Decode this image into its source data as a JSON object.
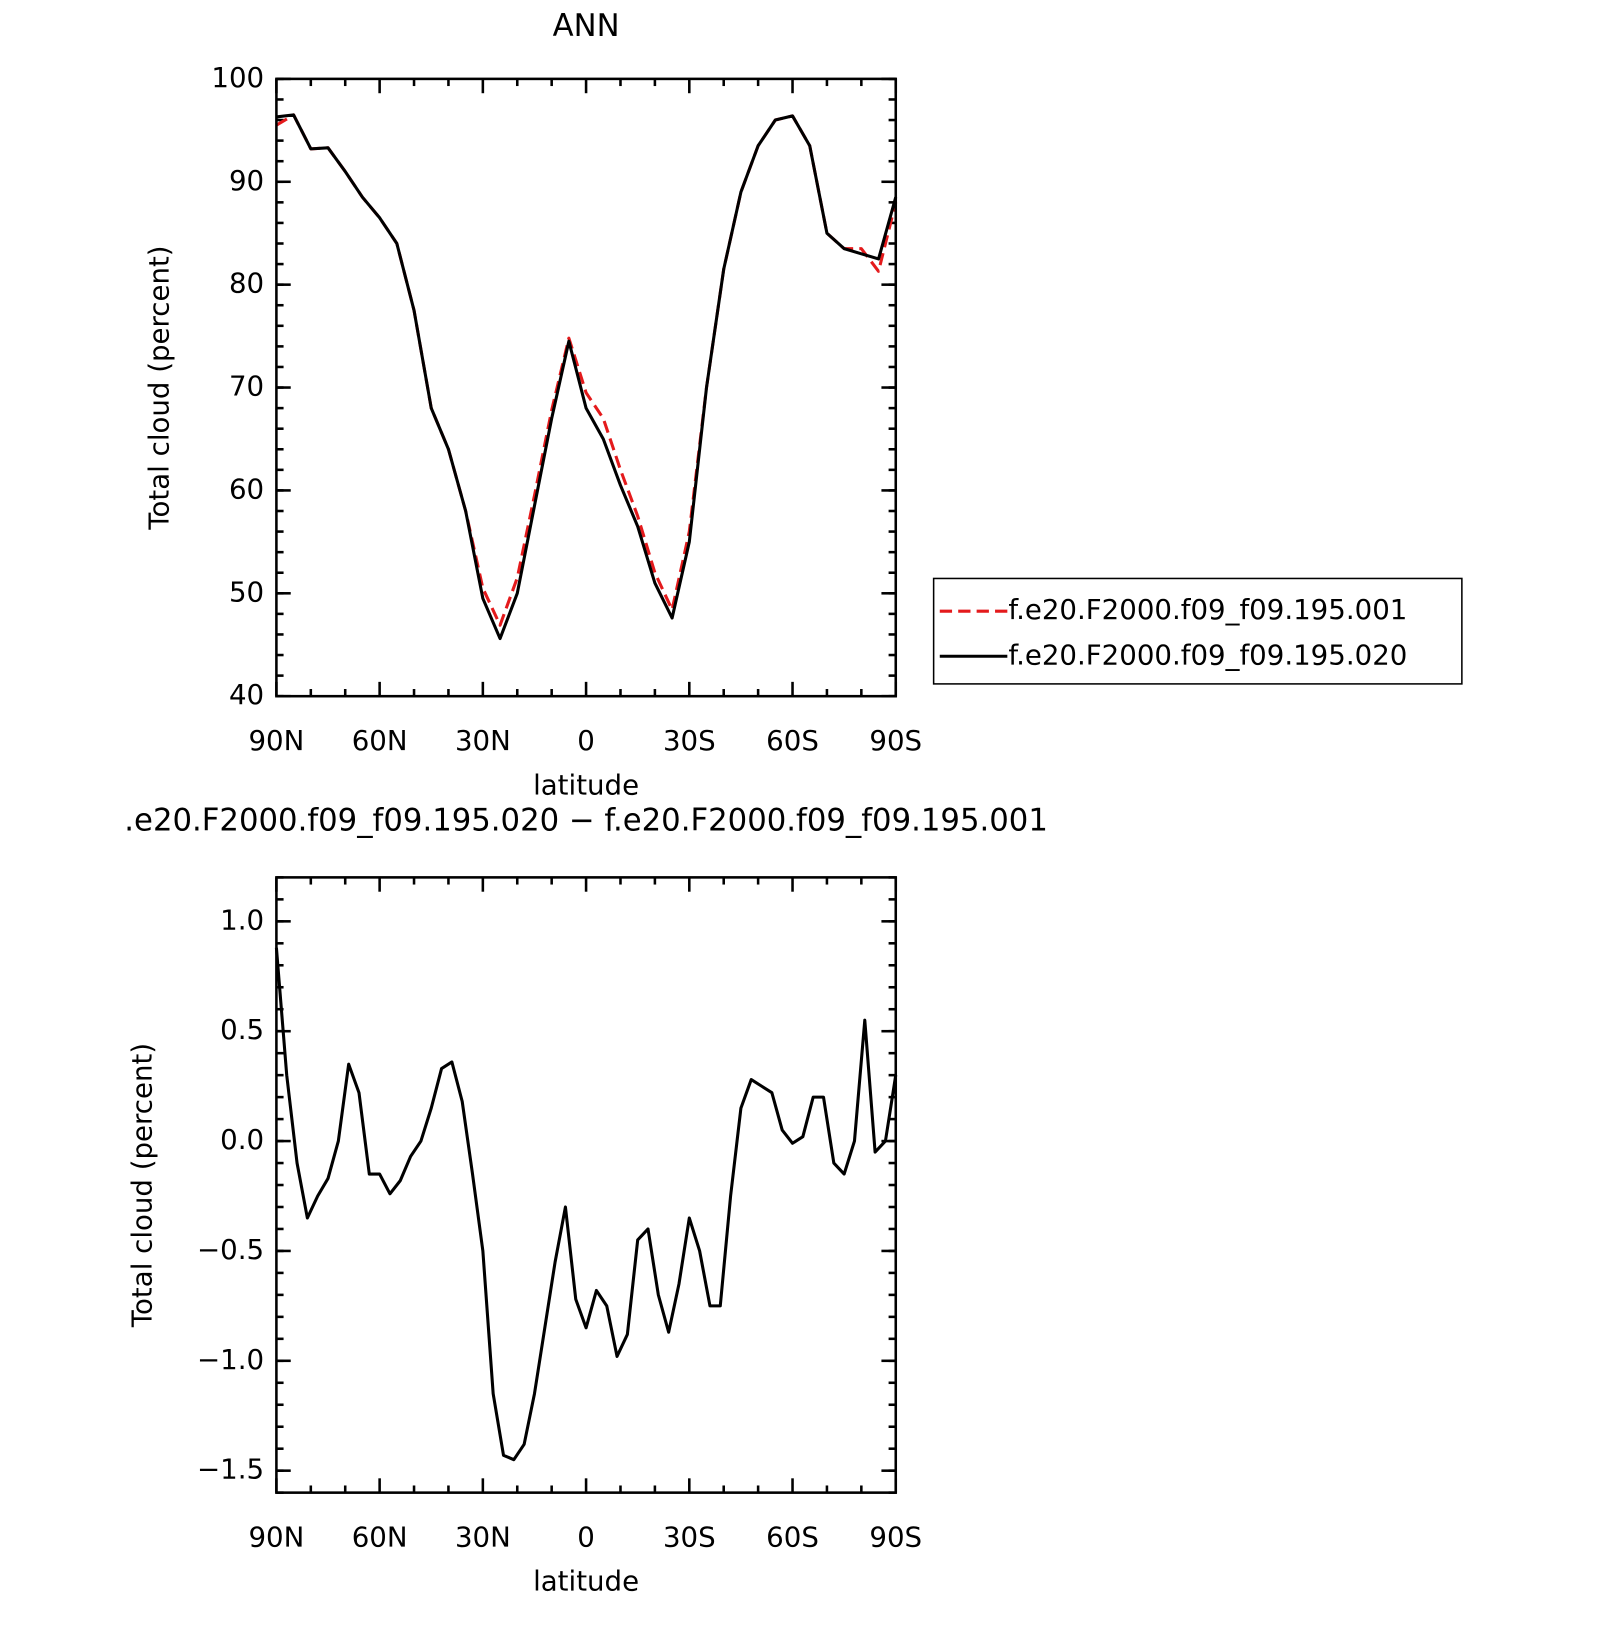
{
  "chart_data": [
    {
      "type": "line",
      "title": "ANN",
      "y_label": "Total cloud (percent)",
      "x_label": "latitude",
      "x": [
        90,
        85,
        80,
        75,
        70,
        65,
        60,
        55,
        50,
        45,
        40,
        35,
        30,
        25,
        20,
        15,
        10,
        5,
        0,
        -5,
        -10,
        -15,
        -20,
        -25,
        -30,
        -35,
        -40,
        -45,
        -50,
        -55,
        -60,
        -65,
        -70,
        -75,
        -80,
        -85,
        -90
      ],
      "xlim": [
        90,
        -90
      ],
      "xticks": [
        {
          "value": 90,
          "label": "90N"
        },
        {
          "value": 60,
          "label": "60N"
        },
        {
          "value": 30,
          "label": "30N"
        },
        0,
        {
          "value": -30,
          "label": "30S"
        },
        {
          "value": -60,
          "label": "60S"
        },
        {
          "value": -90,
          "label": "90S"
        }
      ],
      "ylim": [
        40,
        100
      ],
      "yticks": [
        40,
        50,
        60,
        70,
        80,
        90,
        100
      ],
      "legend": "outside-right",
      "series": [
        {
          "name": "f.e20.F2000.f09_f09.195.001",
          "color": "#e41a1c",
          "dash": "dashed",
          "values": [
            95.5,
            96.5,
            93.2,
            93.3,
            91,
            88.5,
            86.5,
            84,
            77.5,
            68,
            64,
            58,
            50.5,
            46.9,
            51.5,
            59.5,
            67.8,
            74.8,
            69.5,
            67,
            62,
            57.5,
            52,
            48.4,
            56,
            70,
            81.5,
            89,
            93.5,
            96,
            96.4,
            93.5,
            85,
            83.5,
            83.5,
            81.3,
            88
          ]
        },
        {
          "name": "f.e20.F2000.f09_f09.195.020",
          "color": "#000000",
          "dash": "solid",
          "values": [
            96.3,
            96.5,
            93.2,
            93.3,
            91,
            88.5,
            86.5,
            84,
            77.5,
            68,
            64,
            58,
            49.5,
            45.6,
            50,
            58.5,
            67,
            74.5,
            68,
            65,
            60.5,
            56.5,
            51,
            47.6,
            55,
            70,
            81.5,
            89,
            93.5,
            96,
            96.4,
            93.5,
            85,
            83.5,
            83,
            82.5,
            88.5
          ]
        }
      ]
    },
    {
      "type": "line",
      "title": ".e20.F2000.f09_f09.195.020 − f.e20.F2000.f09_f09.195.001",
      "y_label": "Total cloud (percent)",
      "x_label": "latitude",
      "x": [
        90,
        87,
        84,
        81,
        78,
        75,
        72,
        69,
        66,
        63,
        60,
        57,
        54,
        51,
        48,
        45,
        42,
        39,
        36,
        33,
        30,
        27,
        24,
        21,
        18,
        15,
        12,
        9,
        6,
        3,
        0,
        -3,
        -6,
        -9,
        -12,
        -15,
        -18,
        -21,
        -24,
        -27,
        -30,
        -33,
        -36,
        -39,
        -42,
        -45,
        -48,
        -51,
        -54,
        -57,
        -60,
        -63,
        -66,
        -69,
        -72,
        -75,
        -78,
        -81,
        -84,
        -87,
        -90
      ],
      "xlim": [
        90,
        -90
      ],
      "xticks": [
        {
          "value": 90,
          "label": "90N"
        },
        {
          "value": 60,
          "label": "60N"
        },
        {
          "value": 30,
          "label": "30N"
        },
        0,
        {
          "value": -30,
          "label": "30S"
        },
        {
          "value": -60,
          "label": "60S"
        },
        {
          "value": -90,
          "label": "90S"
        }
      ],
      "ylim": [
        -1.6,
        1.2
      ],
      "yticks": [
        {
          "value": -1.5,
          "label": "−1.5"
        },
        {
          "value": -1,
          "label": "−1.0"
        },
        {
          "value": -0.5,
          "label": "−0.5"
        },
        {
          "value": 0,
          "label": "0.0"
        },
        0.5,
        {
          "value": 1,
          "label": "1.0"
        }
      ],
      "series": [
        {
          "color": "#000000",
          "dash": "solid",
          "values": [
            0.88,
            0.3,
            -0.1,
            -0.35,
            -0.25,
            -0.17,
            0.0,
            0.35,
            0.22,
            -0.15,
            -0.15,
            -0.24,
            -0.18,
            -0.07,
            0.0,
            0.15,
            0.33,
            0.36,
            0.18,
            -0.15,
            -0.5,
            -1.15,
            -1.43,
            -1.45,
            -1.38,
            -1.15,
            -0.85,
            -0.55,
            -0.3,
            -0.72,
            -0.85,
            -0.68,
            -0.75,
            -0.98,
            -0.88,
            -0.45,
            -0.4,
            -0.7,
            -0.87,
            -0.65,
            -0.35,
            -0.5,
            -0.75,
            -0.75,
            -0.25,
            0.15,
            0.28,
            0.25,
            0.22,
            0.05,
            -0.01,
            0.02,
            0.2,
            0.2,
            -0.1,
            -0.15,
            0.0,
            0.55,
            -0.05,
            0.0,
            0.3
          ]
        }
      ]
    }
  ]
}
